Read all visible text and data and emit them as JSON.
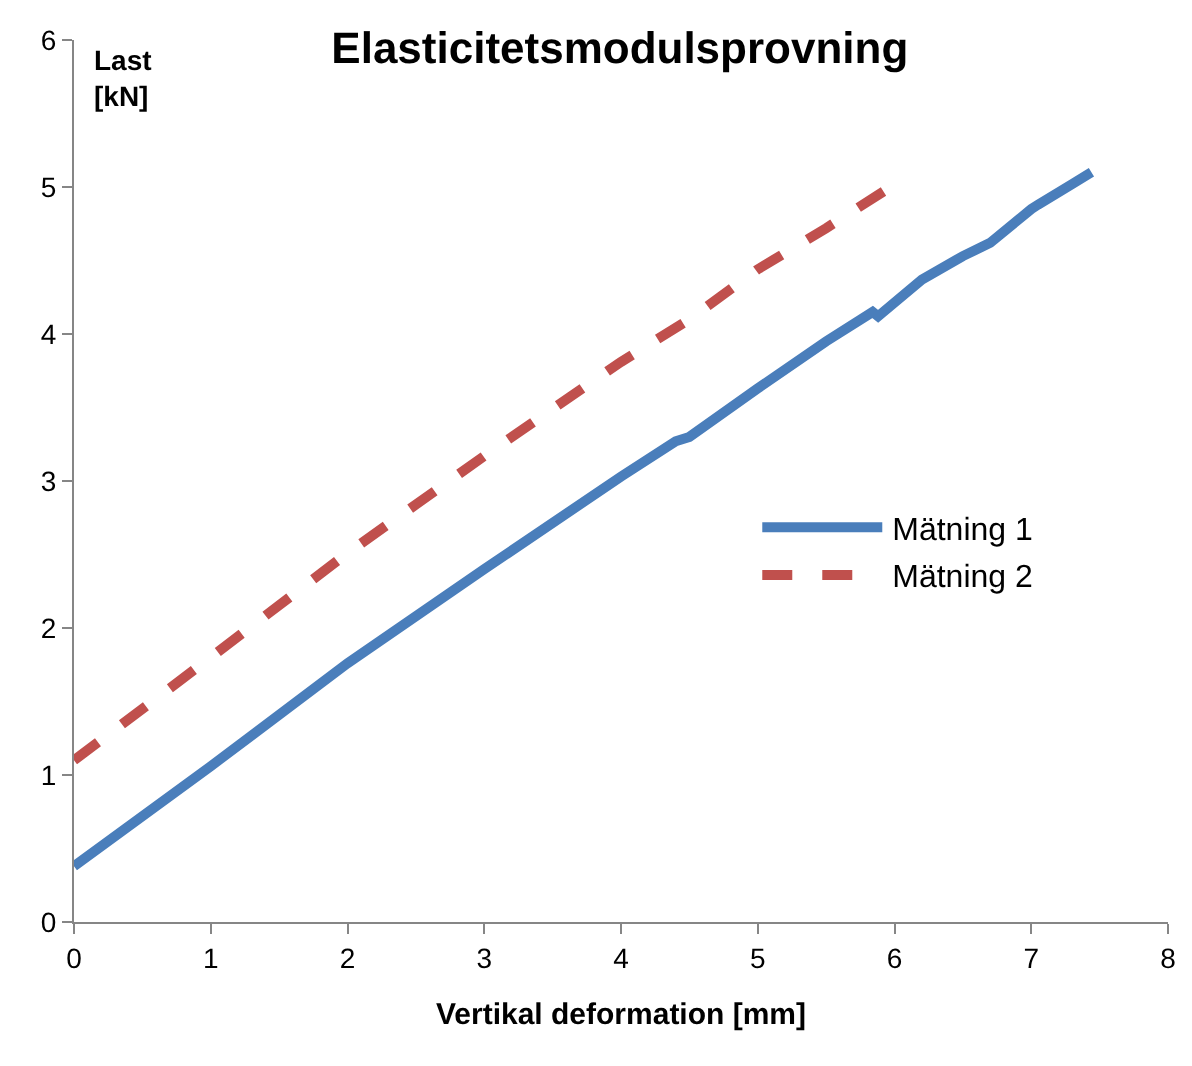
{
  "chart_data": {
    "type": "line",
    "title": "Elasticitetsmodulsprovning",
    "xlabel": "Vertikal deformation [mm]",
    "ylabel": "Last\n[kN]",
    "xlim": [
      0,
      8
    ],
    "xticks": [
      0,
      1,
      2,
      3,
      4,
      5,
      6,
      7,
      8
    ],
    "ylim": [
      0,
      6
    ],
    "yticks": [
      0,
      1,
      2,
      3,
      4,
      5,
      6
    ],
    "legend": "right",
    "series": [
      {
        "name": "Mätning 1",
        "color": "#4a7ebb",
        "line_style": "solid",
        "x": [
          0,
          1,
          2,
          3,
          4,
          4.4,
          4.5,
          5,
          5.5,
          5.84,
          5.88,
          6.2,
          6.5,
          6.7,
          7,
          7.05,
          7.3,
          7.44
        ],
        "values": [
          0.38,
          1.06,
          1.76,
          2.4,
          3.03,
          3.27,
          3.3,
          3.63,
          3.95,
          4.15,
          4.12,
          4.37,
          4.53,
          4.62,
          4.85,
          4.88,
          5.02,
          5.1
        ]
      },
      {
        "name": "Mätning 2",
        "color": "#c0504d",
        "line_style": "dashed",
        "x": [
          0,
          1,
          2,
          3,
          4,
          4.5,
          5,
          5.5,
          5.92
        ],
        "values": [
          1.1,
          1.8,
          2.51,
          3.17,
          3.81,
          4.1,
          4.44,
          4.72,
          4.97
        ]
      }
    ]
  }
}
